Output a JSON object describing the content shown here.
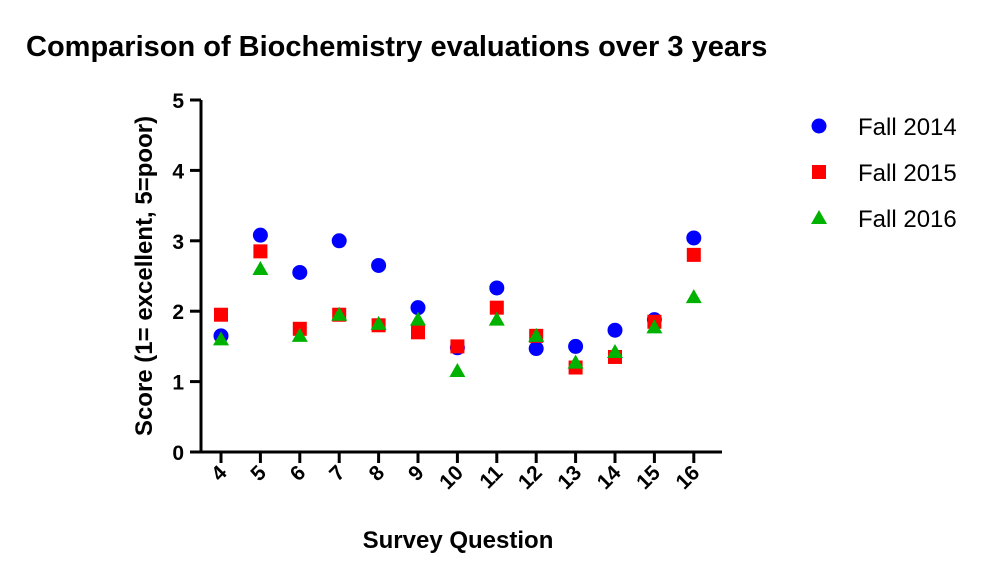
{
  "chart_data": {
    "type": "scatter",
    "title": "Comparison of Biochemistry evaluations over 3 years",
    "xlabel": "Survey Question",
    "ylabel": "Score (1= excellent, 5=poor)",
    "categories": [
      "4",
      "5",
      "6",
      "7",
      "8",
      "9",
      "10",
      "11",
      "12",
      "13",
      "14",
      "15",
      "16"
    ],
    "ylim": [
      0,
      5
    ],
    "yticks": [
      "0",
      "1",
      "2",
      "3",
      "4",
      "5"
    ],
    "grid": false,
    "legend_position": "right",
    "series": [
      {
        "name": "Fall 2014",
        "marker": "circle",
        "color": "#0000ff",
        "values": [
          1.65,
          3.08,
          2.55,
          3.0,
          2.65,
          2.05,
          1.48,
          2.33,
          1.47,
          1.5,
          1.73,
          1.88,
          3.04
        ]
      },
      {
        "name": "Fall 2015",
        "marker": "square",
        "color": "#ff0000",
        "values": [
          1.95,
          2.85,
          1.75,
          1.95,
          1.8,
          1.7,
          1.5,
          2.05,
          1.65,
          1.2,
          1.35,
          1.85,
          2.8
        ]
      },
      {
        "name": "Fall 2016",
        "marker": "triangle",
        "color": "#00b200",
        "values": [
          1.6,
          2.6,
          1.65,
          1.95,
          1.82,
          1.88,
          1.15,
          1.88,
          1.65,
          1.27,
          1.42,
          1.77,
          2.2
        ]
      }
    ]
  }
}
